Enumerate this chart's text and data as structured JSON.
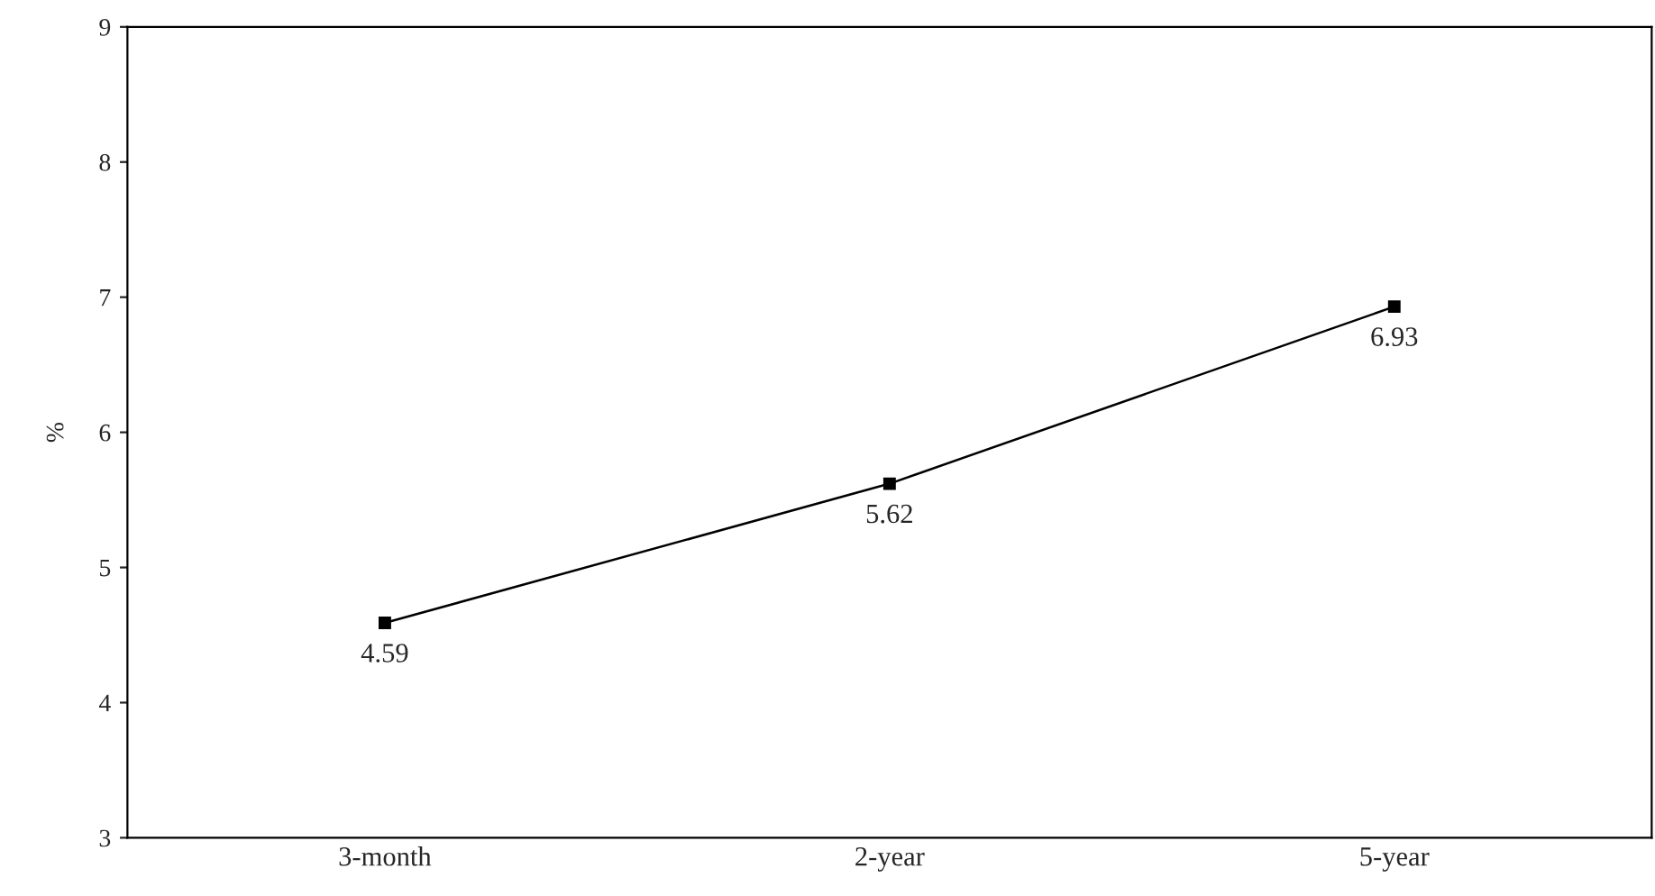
{
  "chart_data": {
    "type": "line",
    "ylabel": "%",
    "categories": [
      "3-month",
      "2-year",
      "5-year"
    ],
    "series": [
      {
        "color": "#000000",
        "values": [
          4.59,
          5.62,
          6.93
        ]
      }
    ],
    "ylim": [
      3,
      9
    ],
    "yticks": [
      3,
      4,
      5,
      6,
      7,
      8,
      9
    ],
    "marker": "square",
    "line_style": "solid",
    "data_labels": true,
    "grid": false,
    "legend": false
  }
}
